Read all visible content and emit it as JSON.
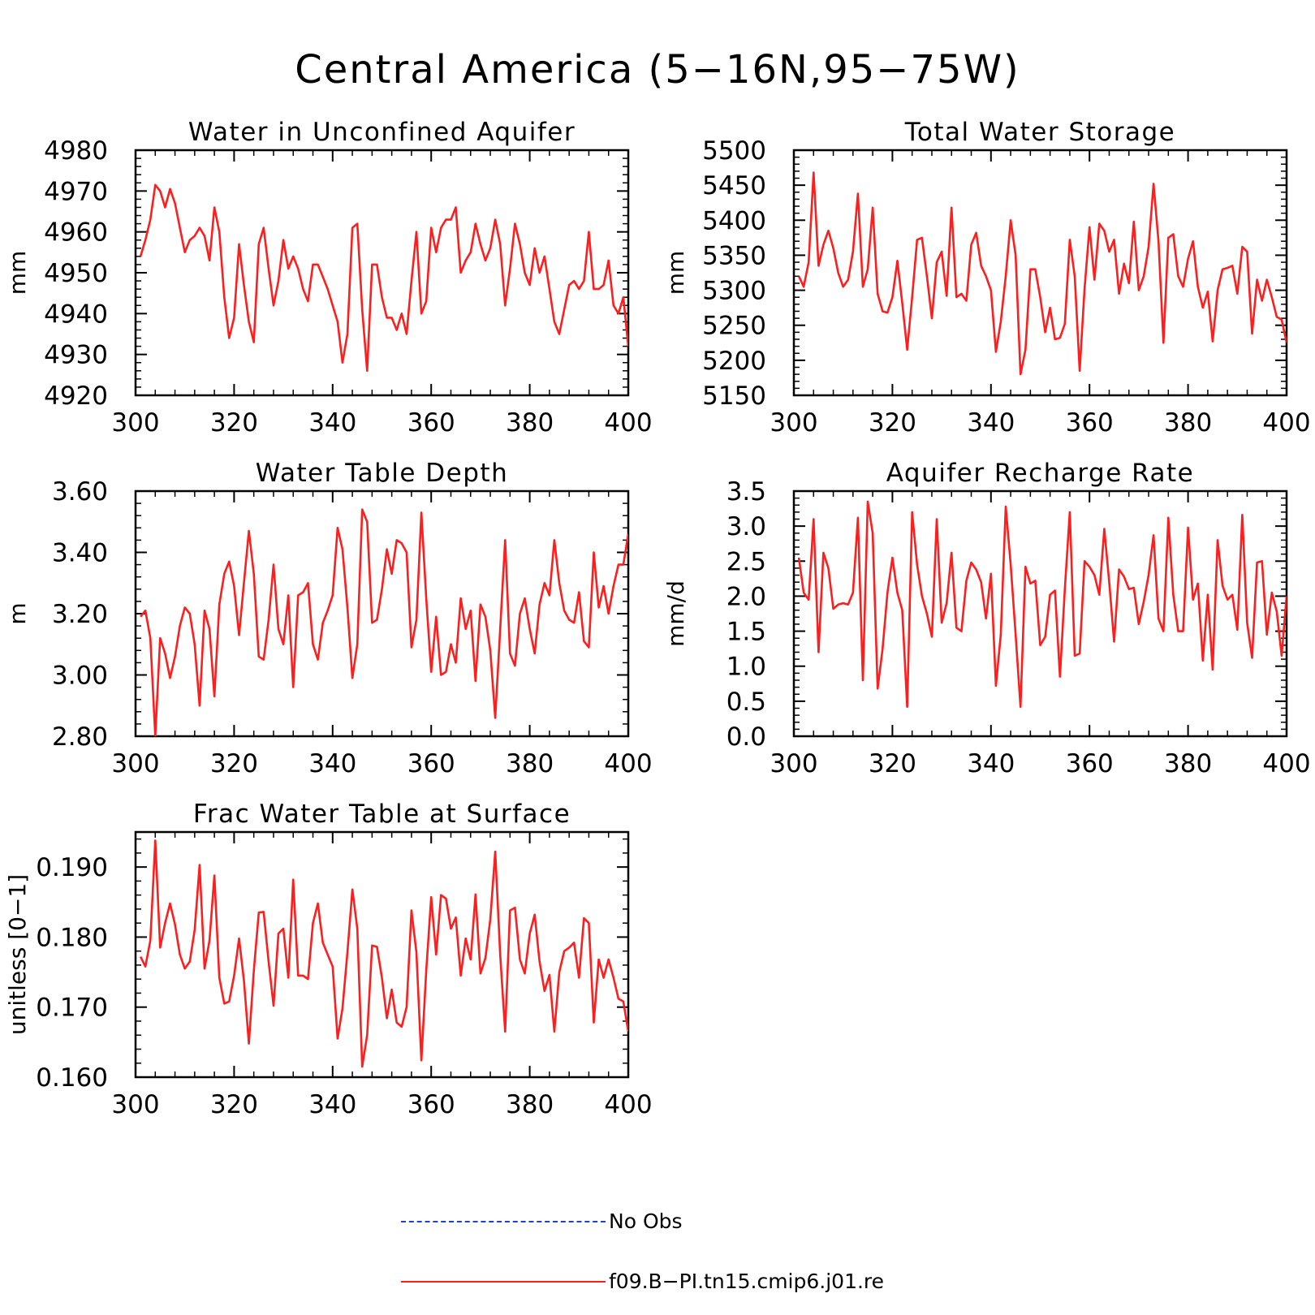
{
  "title": "Central America (5−16N,95−75W)",
  "legend": [
    {
      "label": "No Obs",
      "color": "#1f3fd9",
      "dash": "dashed"
    },
    {
      "label": "f09.B−PI.tn15.cmip6.j01.re",
      "color": "#ff1e1e",
      "dash": "solid"
    }
  ],
  "chart_data": [
    {
      "type": "line",
      "title": "Water in Unconfined Aquifer",
      "ylabel": "mm",
      "xlim": [
        300,
        400
      ],
      "ylim": [
        4920,
        4980
      ],
      "xticks": [
        300,
        320,
        340,
        360,
        380,
        400
      ],
      "xtick_labels": [
        "300",
        "320",
        "340",
        "360",
        "380",
        "400"
      ],
      "yticks": [
        4920,
        4930,
        4940,
        4950,
        4960,
        4970,
        4980
      ],
      "ytick_labels": [
        "4920",
        "4930",
        "4940",
        "4950",
        "4960",
        "4970",
        "4980"
      ],
      "x": [
        301,
        302,
        303,
        304,
        305,
        306,
        307,
        308,
        309,
        310,
        311,
        312,
        313,
        314,
        315,
        316,
        317,
        318,
        319,
        320,
        321,
        322,
        323,
        324,
        325,
        326,
        327,
        328,
        329,
        330,
        331,
        332,
        333,
        334,
        335,
        336,
        337,
        338,
        339,
        340,
        341,
        342,
        343,
        344,
        345,
        346,
        347,
        348,
        349,
        350,
        351,
        352,
        353,
        354,
        355,
        356,
        357,
        358,
        359,
        360,
        361,
        362,
        363,
        364,
        365,
        366,
        367,
        368,
        369,
        370,
        371,
        372,
        373,
        374,
        375,
        376,
        377,
        378,
        379,
        380,
        381,
        382,
        383,
        384,
        385,
        386,
        387,
        388,
        389,
        390,
        391,
        392,
        393,
        394,
        395,
        396,
        397,
        398,
        399,
        400
      ],
      "series": [
        {
          "values": [
            4954,
            4958,
            4963,
            4971.5,
            4970,
            4966,
            4970.5,
            4967,
            4961,
            4955,
            4958,
            4959,
            4961,
            4959,
            4953,
            4966,
            4960,
            4944,
            4934,
            4939,
            4957,
            4947,
            4938,
            4933,
            4957,
            4961,
            4951,
            4942,
            4948,
            4958,
            4951,
            4954,
            4951,
            4946,
            4943,
            4952,
            4952,
            4949,
            4946,
            4942,
            4938,
            4928,
            4935,
            4961,
            4962,
            4941,
            4926,
            4952,
            4952,
            4944,
            4939,
            4939,
            4936,
            4940,
            4935,
            4948,
            4960,
            4940,
            4943,
            4961,
            4955,
            4961,
            4963,
            4963,
            4966,
            4950,
            4953,
            4955,
            4962,
            4957,
            4953,
            4956,
            4963,
            4957,
            4942,
            4951,
            4962,
            4957,
            4950,
            4947,
            4956,
            4950,
            4954,
            4946,
            4938,
            4935,
            4941,
            4947,
            4948,
            4946,
            4948,
            4960,
            4946,
            4946,
            4947,
            4953,
            4942,
            4940,
            4944,
            4932
          ]
        }
      ]
    },
    {
      "type": "line",
      "title": "Total Water Storage",
      "ylabel": "mm",
      "xlim": [
        300,
        400
      ],
      "ylim": [
        5150,
        5500
      ],
      "xticks": [
        300,
        320,
        340,
        360,
        380,
        400
      ],
      "xtick_labels": [
        "300",
        "320",
        "340",
        "360",
        "380",
        "400"
      ],
      "yticks": [
        5150,
        5200,
        5250,
        5300,
        5350,
        5400,
        5450,
        5500
      ],
      "ytick_labels": [
        "5150",
        "5200",
        "5250",
        "5300",
        "5350",
        "5400",
        "5450",
        "5500"
      ],
      "x": [
        301,
        302,
        303,
        304,
        305,
        306,
        307,
        308,
        309,
        310,
        311,
        312,
        313,
        314,
        315,
        316,
        317,
        318,
        319,
        320,
        321,
        322,
        323,
        324,
        325,
        326,
        327,
        328,
        329,
        330,
        331,
        332,
        333,
        334,
        335,
        336,
        337,
        338,
        339,
        340,
        341,
        342,
        343,
        344,
        345,
        346,
        347,
        348,
        349,
        350,
        351,
        352,
        353,
        354,
        355,
        356,
        357,
        358,
        359,
        360,
        361,
        362,
        363,
        364,
        365,
        366,
        367,
        368,
        369,
        370,
        371,
        372,
        373,
        374,
        375,
        376,
        377,
        378,
        379,
        380,
        381,
        382,
        383,
        384,
        385,
        386,
        387,
        388,
        389,
        390,
        391,
        392,
        393,
        394,
        395,
        396,
        397,
        398,
        399,
        400
      ],
      "series": [
        {
          "values": [
            5320,
            5305,
            5340,
            5468,
            5335,
            5365,
            5385,
            5360,
            5325,
            5305,
            5315,
            5355,
            5438,
            5305,
            5330,
            5418,
            5295,
            5270,
            5268,
            5290,
            5342,
            5282,
            5215,
            5290,
            5372,
            5375,
            5320,
            5260,
            5340,
            5355,
            5292,
            5418,
            5290,
            5295,
            5285,
            5365,
            5382,
            5335,
            5320,
            5300,
            5212,
            5255,
            5320,
            5400,
            5350,
            5180,
            5215,
            5330,
            5330,
            5290,
            5240,
            5275,
            5230,
            5232,
            5252,
            5372,
            5320,
            5185,
            5302,
            5390,
            5315,
            5395,
            5385,
            5355,
            5372,
            5295,
            5338,
            5310,
            5398,
            5300,
            5320,
            5362,
            5452,
            5370,
            5225,
            5375,
            5380,
            5320,
            5305,
            5345,
            5370,
            5305,
            5275,
            5298,
            5227,
            5300,
            5330,
            5332,
            5335,
            5295,
            5362,
            5355,
            5238,
            5315,
            5285,
            5315,
            5290,
            5262,
            5258,
            5225
          ]
        }
      ]
    },
    {
      "type": "line",
      "title": "Water Table Depth",
      "ylabel": "m",
      "xlim": [
        300,
        400
      ],
      "ylim": [
        2.8,
        3.6
      ],
      "xticks": [
        300,
        320,
        340,
        360,
        380,
        400
      ],
      "xtick_labels": [
        "300",
        "320",
        "340",
        "360",
        "380",
        "400"
      ],
      "yticks": [
        2.8,
        3.0,
        3.2,
        3.4,
        3.6
      ],
      "ytick_labels": [
        "2.80",
        "3.00",
        "3.20",
        "3.40",
        "3.60"
      ],
      "x": [
        301,
        302,
        303,
        304,
        305,
        306,
        307,
        308,
        309,
        310,
        311,
        312,
        313,
        314,
        315,
        316,
        317,
        318,
        319,
        320,
        321,
        322,
        323,
        324,
        325,
        326,
        327,
        328,
        329,
        330,
        331,
        332,
        333,
        334,
        335,
        336,
        337,
        338,
        339,
        340,
        341,
        342,
        343,
        344,
        345,
        346,
        347,
        348,
        349,
        350,
        351,
        352,
        353,
        354,
        355,
        356,
        357,
        358,
        359,
        360,
        361,
        362,
        363,
        364,
        365,
        366,
        367,
        368,
        369,
        370,
        371,
        372,
        373,
        374,
        375,
        376,
        377,
        378,
        379,
        380,
        381,
        382,
        383,
        384,
        385,
        386,
        387,
        388,
        389,
        390,
        391,
        392,
        393,
        394,
        395,
        396,
        397,
        398,
        399,
        400
      ],
      "series": [
        {
          "values": [
            3.19,
            3.21,
            3.12,
            2.8,
            3.12,
            3.07,
            2.99,
            3.06,
            3.16,
            3.22,
            3.2,
            3.1,
            2.9,
            3.21,
            3.15,
            2.93,
            3.23,
            3.33,
            3.37,
            3.29,
            3.13,
            3.3,
            3.47,
            3.33,
            3.06,
            3.05,
            3.18,
            3.36,
            3.15,
            3.1,
            3.26,
            2.96,
            3.26,
            3.27,
            3.3,
            3.1,
            3.05,
            3.17,
            3.21,
            3.26,
            3.48,
            3.41,
            3.22,
            2.99,
            3.1,
            3.54,
            3.5,
            3.17,
            3.18,
            3.28,
            3.41,
            3.33,
            3.44,
            3.43,
            3.4,
            3.09,
            3.18,
            3.53,
            3.25,
            3.01,
            3.19,
            3.0,
            3.01,
            3.1,
            3.04,
            3.25,
            3.15,
            3.21,
            2.98,
            3.23,
            3.19,
            3.08,
            2.86,
            3.15,
            3.44,
            3.07,
            3.03,
            3.2,
            3.25,
            3.15,
            3.07,
            3.23,
            3.3,
            3.26,
            3.44,
            3.3,
            3.21,
            3.18,
            3.17,
            3.27,
            3.11,
            3.09,
            3.4,
            3.22,
            3.29,
            3.2,
            3.29,
            3.36,
            3.36,
            3.46
          ]
        }
      ]
    },
    {
      "type": "line",
      "title": "Aquifer Recharge Rate",
      "ylabel": "mm/d",
      "xlim": [
        300,
        400
      ],
      "ylim": [
        0.0,
        3.5
      ],
      "xticks": [
        300,
        320,
        340,
        360,
        380,
        400
      ],
      "xtick_labels": [
        "300",
        "320",
        "340",
        "360",
        "380",
        "400"
      ],
      "yticks": [
        0.0,
        0.5,
        1.0,
        1.5,
        2.0,
        2.5,
        3.0,
        3.5
      ],
      "ytick_labels": [
        "0.0",
        "0.5",
        "1.0",
        "1.5",
        "2.0",
        "2.5",
        "3.0",
        "3.5"
      ],
      "x": [
        301,
        302,
        303,
        304,
        305,
        306,
        307,
        308,
        309,
        310,
        311,
        312,
        313,
        314,
        315,
        316,
        317,
        318,
        319,
        320,
        321,
        322,
        323,
        324,
        325,
        326,
        327,
        328,
        329,
        330,
        331,
        332,
        333,
        334,
        335,
        336,
        337,
        338,
        339,
        340,
        341,
        342,
        343,
        344,
        345,
        346,
        347,
        348,
        349,
        350,
        351,
        352,
        353,
        354,
        355,
        356,
        357,
        358,
        359,
        360,
        361,
        362,
        363,
        364,
        365,
        366,
        367,
        368,
        369,
        370,
        371,
        372,
        373,
        374,
        375,
        376,
        377,
        378,
        379,
        380,
        381,
        382,
        383,
        384,
        385,
        386,
        387,
        388,
        389,
        390,
        391,
        392,
        393,
        394,
        395,
        396,
        397,
        398,
        399,
        400
      ],
      "series": [
        {
          "values": [
            2.55,
            2.05,
            1.95,
            3.1,
            1.2,
            2.62,
            2.4,
            1.82,
            1.88,
            1.9,
            1.88,
            2.05,
            3.12,
            0.8,
            3.35,
            2.9,
            0.68,
            1.25,
            2.05,
            2.55,
            2.05,
            1.8,
            0.42,
            3.2,
            2.45,
            2.0,
            1.75,
            1.42,
            3.1,
            1.62,
            1.9,
            2.62,
            1.55,
            1.5,
            2.22,
            2.48,
            2.38,
            2.2,
            1.68,
            2.32,
            0.72,
            1.45,
            3.28,
            2.45,
            1.45,
            0.42,
            2.42,
            2.18,
            2.22,
            1.3,
            1.42,
            2.02,
            2.08,
            0.85,
            2.1,
            3.2,
            1.15,
            1.18,
            2.5,
            2.42,
            2.3,
            2.02,
            2.96,
            2.2,
            1.35,
            2.38,
            2.28,
            2.1,
            2.12,
            1.6,
            1.92,
            2.3,
            2.87,
            1.68,
            1.5,
            3.12,
            2.02,
            1.5,
            1.5,
            2.98,
            1.95,
            2.18,
            1.08,
            2.02,
            0.95,
            2.8,
            2.15,
            1.95,
            2.02,
            1.52,
            3.16,
            1.62,
            1.12,
            2.48,
            2.5,
            1.45,
            2.05,
            1.78,
            1.15,
            2.0
          ]
        }
      ]
    },
    {
      "type": "line",
      "title": "Frac Water Table at Surface",
      "ylabel": "unitless [0−1]",
      "xlim": [
        300,
        400
      ],
      "ylim": [
        0.16,
        0.195
      ],
      "xticks": [
        300,
        320,
        340,
        360,
        380,
        400
      ],
      "xtick_labels": [
        "300",
        "320",
        "340",
        "360",
        "380",
        "400"
      ],
      "yticks": [
        0.16,
        0.17,
        0.18,
        0.19
      ],
      "ytick_labels": [
        "0.160",
        "0.170",
        "0.180",
        "0.190"
      ],
      "x": [
        301,
        302,
        303,
        304,
        305,
        306,
        307,
        308,
        309,
        310,
        311,
        312,
        313,
        314,
        315,
        316,
        317,
        318,
        319,
        320,
        321,
        322,
        323,
        324,
        325,
        326,
        327,
        328,
        329,
        330,
        331,
        332,
        333,
        334,
        335,
        336,
        337,
        338,
        339,
        340,
        341,
        342,
        343,
        344,
        345,
        346,
        347,
        348,
        349,
        350,
        351,
        352,
        353,
        354,
        355,
        356,
        357,
        358,
        359,
        360,
        361,
        362,
        363,
        364,
        365,
        366,
        367,
        368,
        369,
        370,
        371,
        372,
        373,
        374,
        375,
        376,
        377,
        378,
        379,
        380,
        381,
        382,
        383,
        384,
        385,
        386,
        387,
        388,
        389,
        390,
        391,
        392,
        393,
        394,
        395,
        396,
        397,
        398,
        399,
        400
      ],
      "series": [
        {
          "values": [
            0.1772,
            0.1758,
            0.1795,
            0.1938,
            0.1785,
            0.182,
            0.1848,
            0.1818,
            0.1775,
            0.1755,
            0.1765,
            0.181,
            0.1903,
            0.1755,
            0.1795,
            0.1888,
            0.1742,
            0.1705,
            0.1708,
            0.1745,
            0.1798,
            0.1738,
            0.1648,
            0.1752,
            0.1835,
            0.1836,
            0.1765,
            0.1702,
            0.1805,
            0.1812,
            0.1742,
            0.1882,
            0.1745,
            0.1745,
            0.174,
            0.182,
            0.1848,
            0.1792,
            0.1775,
            0.1758,
            0.1655,
            0.1698,
            0.1778,
            0.1868,
            0.1812,
            0.1615,
            0.166,
            0.1788,
            0.1786,
            0.1742,
            0.1684,
            0.1725,
            0.1678,
            0.1672,
            0.17,
            0.1838,
            0.1778,
            0.1624,
            0.1752,
            0.1857,
            0.1775,
            0.186,
            0.1855,
            0.1812,
            0.1828,
            0.1745,
            0.1798,
            0.1768,
            0.1861,
            0.1748,
            0.177,
            0.1825,
            0.1922,
            0.1775,
            0.1665,
            0.1838,
            0.1842,
            0.1768,
            0.1748,
            0.1805,
            0.1832,
            0.1765,
            0.1723,
            0.1746,
            0.1665,
            0.175,
            0.178,
            0.1785,
            0.1792,
            0.1742,
            0.1827,
            0.182,
            0.1678,
            0.1768,
            0.1742,
            0.1768,
            0.1742,
            0.1712,
            0.1708,
            0.1665
          ]
        }
      ]
    }
  ]
}
